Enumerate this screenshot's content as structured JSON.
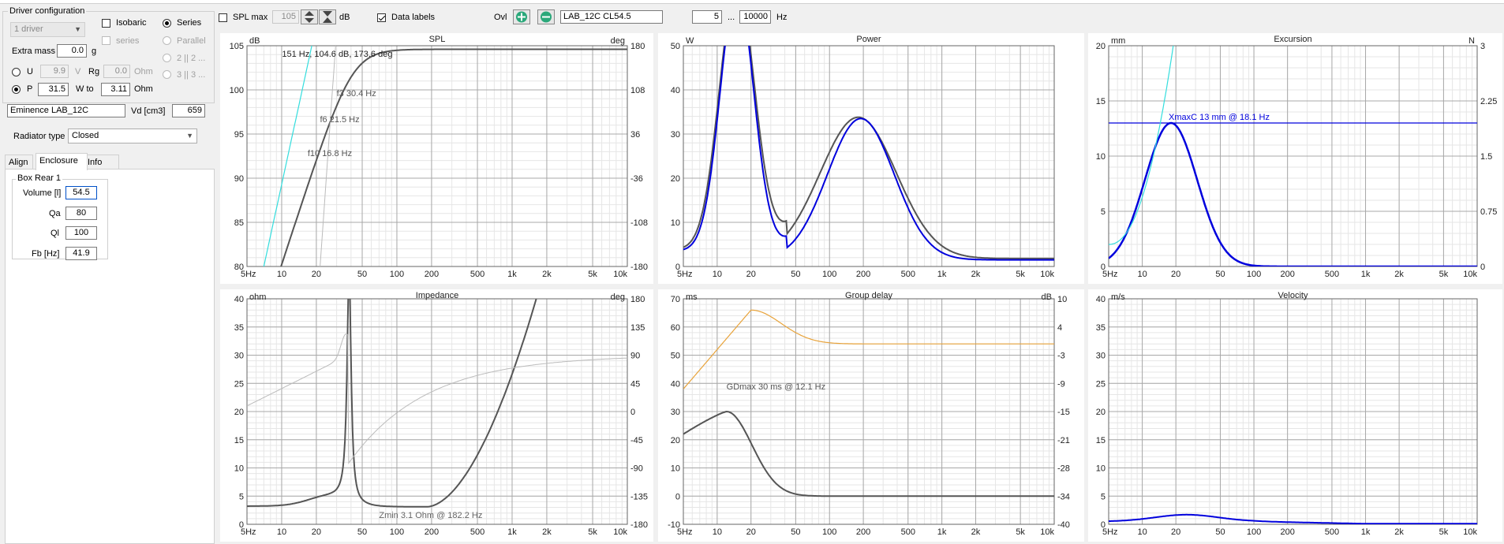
{
  "driver_config": {
    "title": "Driver configuration",
    "count": "1 driver",
    "isobaric_label": "Isobaric",
    "series_check_label": "series",
    "series_label": "Series",
    "parallel_label": "Parallel",
    "option_2": "2 || 2 ...",
    "option_3": "3 || 3 ...",
    "extra_mass_label": "Extra mass",
    "extra_mass_value": "0.0",
    "extra_mass_unit": "g",
    "u_label": "U",
    "u_value": "9.9",
    "v_unit": "V",
    "rg_label": "Rg",
    "rg_value": "0.0",
    "ohm_unit": "Ohm",
    "p_label": "P",
    "p_value": "31.5",
    "w_to_label": "W to",
    "w_to_value": "3.11",
    "ohm_unit2": "Ohm",
    "driver_name": "Eminence LAB_12C",
    "vd_label": "Vd [cm3]",
    "vd_value": "659"
  },
  "radiator": {
    "label": "Radiator type",
    "value": "Closed"
  },
  "tabs": [
    {
      "label": "Align"
    },
    {
      "label": "Enclosure"
    },
    {
      "label": "Info"
    }
  ],
  "enclosure": {
    "box_title": "Box Rear 1",
    "volume_label": "Volume [l]",
    "volume_value": "54.5",
    "qa_label": "Qa",
    "qa_value": "80",
    "ql_label": "Ql",
    "ql_value": "100",
    "fb_label": "Fb [Hz]",
    "fb_value": "41.9"
  },
  "toolbar": {
    "spl_max_label": "SPL max",
    "spl_max_value": "105",
    "db_unit": "dB",
    "data_labels": "Data labels",
    "ovl_label": "Ovl",
    "config_name": "LAB_12C CL54.5",
    "freq_from": "5",
    "ellipsis": "...",
    "freq_to": "10000",
    "hz_unit": "Hz"
  },
  "colors": {
    "dark": "#555555",
    "blue": "#0000dd",
    "cyan": "#33dddd",
    "gray": "#bbbbbb",
    "orange": "#e8a33a",
    "grid": "#d8d8d8"
  },
  "x_ticks": [
    "5Hz",
    "10",
    "20",
    "50",
    "100",
    "200",
    "500",
    "1k",
    "2k",
    "5k",
    "10k"
  ],
  "charts": {
    "spl": {
      "title": "SPL",
      "left_unit": "dB",
      "right_unit": "deg",
      "left_ticks": [
        "105",
        "100",
        "95",
        "90",
        "85",
        "80"
      ],
      "right_ticks": [
        "180",
        "108",
        "36",
        "-36",
        "-108",
        "-180"
      ],
      "annotation": "151 Hz, 104.6 dB, 173.6 deg",
      "label_f3": "f3 30.4 Hz",
      "label_f6": "f6 21.5 Hz",
      "label_f10": "f10 16.8 Hz"
    },
    "power": {
      "title": "Power",
      "left_unit": "W",
      "left_ticks": [
        "50",
        "40",
        "30",
        "20",
        "10",
        "0"
      ]
    },
    "excursion": {
      "title": "Excursion",
      "left_unit": "mm",
      "right_unit": "N",
      "left_ticks": [
        "20",
        "15",
        "10",
        "5",
        "0"
      ],
      "right_ticks": [
        "3",
        "2.25",
        "1.5",
        "0.75",
        "0"
      ],
      "xmax_label": "XmaxC 13 mm  @ 18.1 Hz"
    },
    "impedance": {
      "title": "Impedance",
      "left_unit": "ohm",
      "right_unit": "deg",
      "left_ticks": [
        "40",
        "35",
        "30",
        "25",
        "20",
        "15",
        "10",
        "5",
        "0"
      ],
      "right_ticks": [
        "180",
        "135",
        "90",
        "45",
        "0",
        "-45",
        "-90",
        "-135",
        "-180"
      ],
      "zmin_label": "Zmin 3.1 Ohm @ 182.2 Hz"
    },
    "group_delay": {
      "title": "Group delay",
      "left_unit": "ms",
      "right_unit": "dB",
      "left_ticks": [
        "70",
        "60",
        "50",
        "40",
        "30",
        "20",
        "10",
        "0",
        "-10"
      ],
      "right_ticks": [
        "10",
        "4",
        "-3",
        "-9",
        "-15",
        "-21",
        "-28",
        "-34",
        "-40"
      ],
      "gdmax_label": "GDmax 30 ms  @ 12.1 Hz"
    },
    "velocity": {
      "title": "Velocity",
      "left_unit": "m/s",
      "left_ticks": [
        "40",
        "35",
        "30",
        "25",
        "20",
        "15",
        "10",
        "5",
        "0"
      ]
    }
  }
}
